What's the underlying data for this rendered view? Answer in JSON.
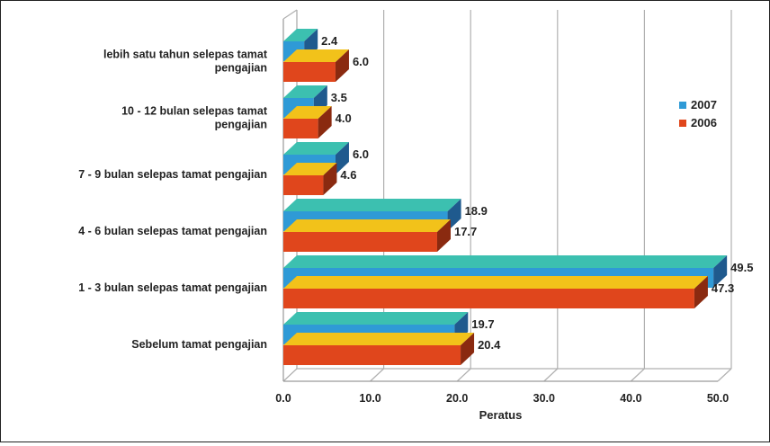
{
  "chart_data": {
    "type": "bar",
    "orientation": "horizontal",
    "categories": [
      [
        "lebih satu tahun selepas tamat",
        "pengajian"
      ],
      [
        "10 - 12 bulan selepas tamat",
        "pengajian"
      ],
      [
        "7 - 9 bulan selepas tamat pengajian"
      ],
      [
        "4 - 6 bulan selepas tamat pengajian"
      ],
      [
        "1 - 3 bulan selepas tamat pengajian"
      ],
      [
        "Sebelum tamat pengajian"
      ]
    ],
    "series": [
      {
        "name": "2007",
        "values": [
          2.4,
          3.5,
          6.0,
          18.9,
          49.5,
          19.7
        ],
        "value_labels": [
          "2.4",
          "3.5",
          "6.0",
          "18.9",
          "49.5",
          "19.7"
        ]
      },
      {
        "name": "2006",
        "values": [
          6.0,
          4.0,
          4.6,
          17.7,
          47.3,
          20.4
        ],
        "value_labels": [
          "6.0",
          "4.0",
          "4.6",
          "17.7",
          "47.3",
          "20.4"
        ]
      }
    ],
    "xlabel": "Peratus",
    "xlim": [
      0,
      50
    ],
    "xticks": [
      "0.0",
      "10.0",
      "20.0",
      "30.0",
      "40.0",
      "50.0"
    ],
    "grid": true,
    "legend_position": "right",
    "three_d": true,
    "colors": {
      "2007": {
        "front": "#2f9ad6",
        "top": "#3cc0b0",
        "side": "#1f5a8e"
      },
      "2006": {
        "front": "#e0461c",
        "top": "#f2c21a",
        "side": "#8a2a10"
      }
    }
  }
}
